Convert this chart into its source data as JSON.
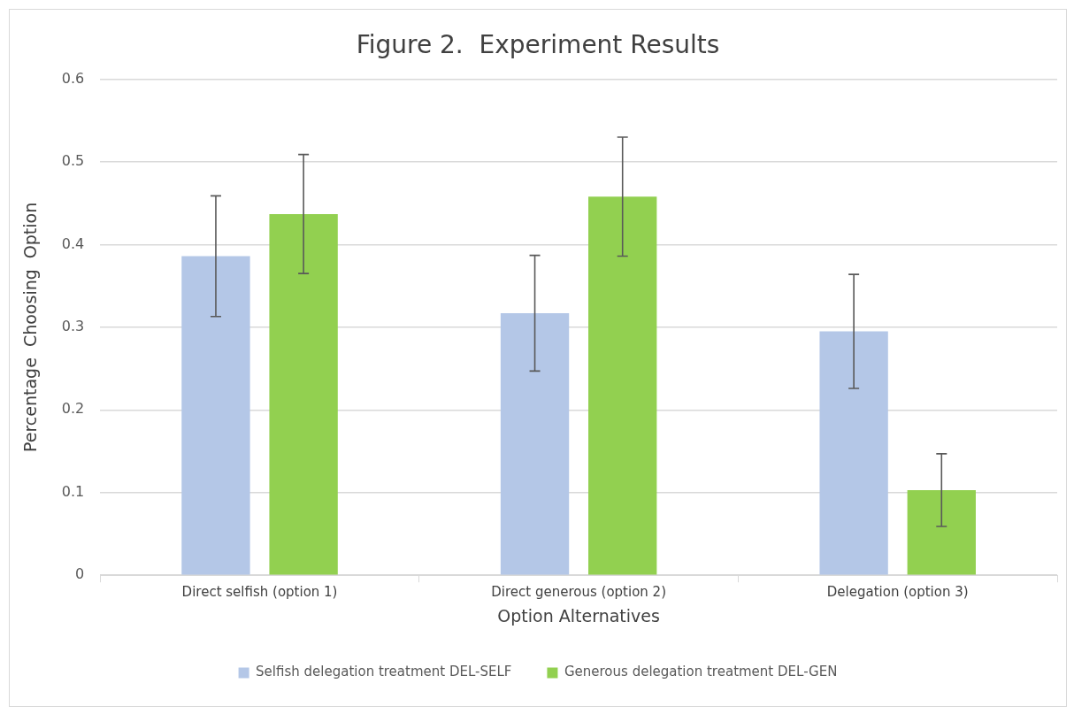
{
  "chart_data": {
    "type": "bar",
    "title": "Figure 2.  Experiment Results",
    "xlabel": "Option Alternatives",
    "ylabel": "Percentage  Choosing  Option",
    "categories": [
      "Direct selfish (option 1)",
      "Direct generous (option 2)",
      "Delegation (option 3)"
    ],
    "series": [
      {
        "name": "Selfish delegation treatment DEL-SELF",
        "color": "#b4c7e7",
        "values": [
          0.386,
          0.317,
          0.295
        ],
        "errors": [
          0.073,
          0.07,
          0.069
        ]
      },
      {
        "name": "Generous delegation treatment DEL-GEN",
        "color": "#92d050",
        "values": [
          0.437,
          0.458,
          0.103
        ],
        "errors": [
          0.072,
          0.072,
          0.044
        ]
      }
    ],
    "ylim": [
      0,
      0.6
    ],
    "yticks": [
      0,
      0.1,
      0.2,
      0.3,
      0.4,
      0.5,
      0.6
    ],
    "grid": "y",
    "legend": "bottom"
  }
}
